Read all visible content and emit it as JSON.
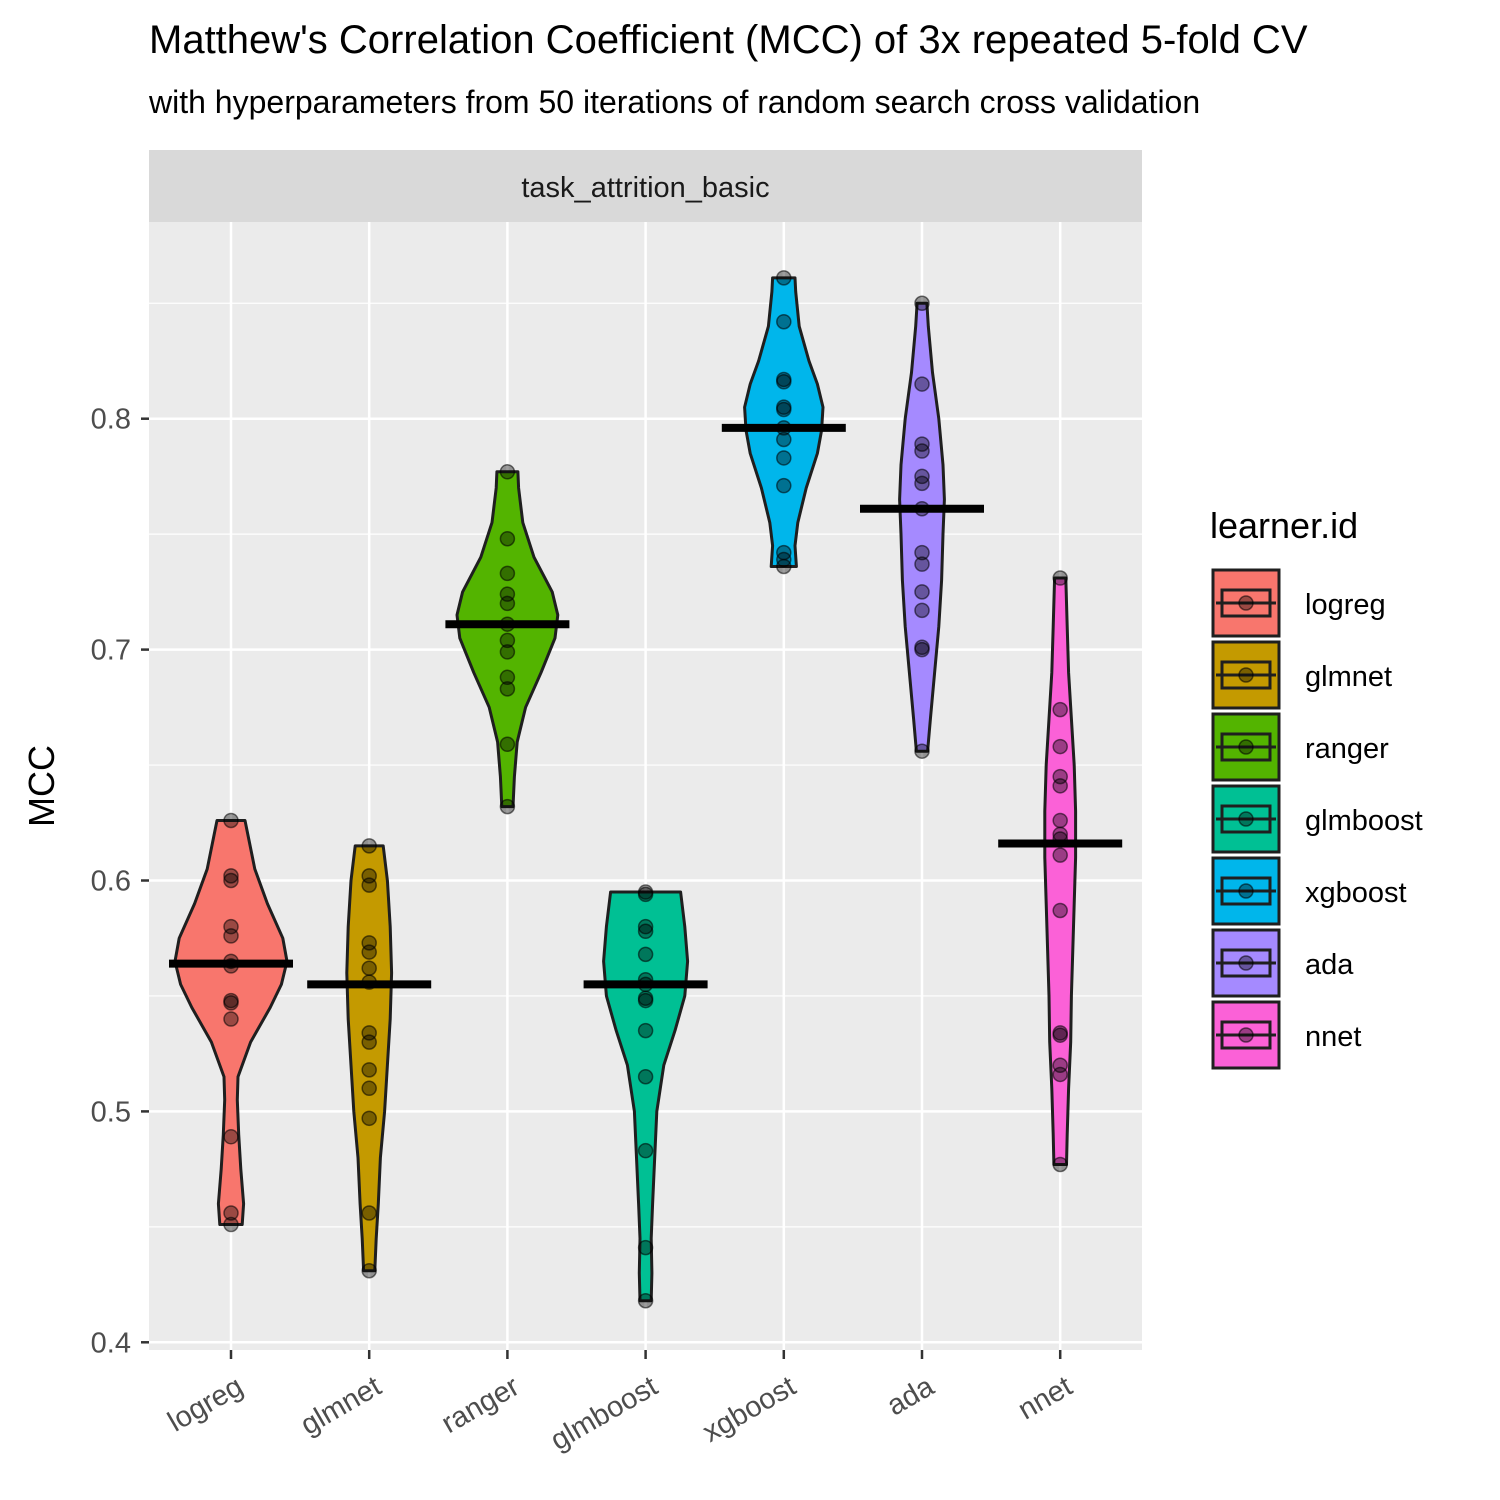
{
  "chart_data": {
    "type": "violin",
    "title": "Matthew's Correlation Coefficient (MCC) of 3x repeated 5-fold CV",
    "subtitle": "with hyperparameters from 50 iterations of random search cross validation",
    "facet": "task_attrition_basic",
    "ylabel": "MCC",
    "xlabel": "",
    "ylim": [
      0.4,
      0.885
    ],
    "yticks": [
      0.4,
      0.5,
      0.6,
      0.7,
      0.8
    ],
    "ytick_labels": [
      "0.4",
      "0.5",
      "0.6",
      "0.7",
      "0.8"
    ],
    "grid": true,
    "legend": {
      "title": "learner.id",
      "position": "right"
    },
    "categories": [
      "logreg",
      "glmnet",
      "ranger",
      "glmboost",
      "xgboost",
      "ada",
      "nnet"
    ],
    "series": [
      {
        "name": "logreg",
        "color": "#F8766D",
        "median": 0.564,
        "min": 0.451,
        "max": 0.626,
        "points": [
          0.626,
          0.602,
          0.6,
          0.58,
          0.576,
          0.565,
          0.563,
          0.548,
          0.547,
          0.54,
          0.489,
          0.456,
          0.451
        ],
        "density": [
          [
            0.451,
            0.08
          ],
          [
            0.46,
            0.09
          ],
          [
            0.475,
            0.07
          ],
          [
            0.49,
            0.055
          ],
          [
            0.505,
            0.045
          ],
          [
            0.515,
            0.05
          ],
          [
            0.53,
            0.14
          ],
          [
            0.545,
            0.28
          ],
          [
            0.555,
            0.36
          ],
          [
            0.565,
            0.4
          ],
          [
            0.575,
            0.37
          ],
          [
            0.59,
            0.26
          ],
          [
            0.605,
            0.17
          ],
          [
            0.62,
            0.12
          ],
          [
            0.626,
            0.1
          ]
        ]
      },
      {
        "name": "glmnet",
        "color": "#C49A00",
        "median": 0.555,
        "min": 0.431,
        "max": 0.615,
        "points": [
          0.615,
          0.602,
          0.598,
          0.573,
          0.569,
          0.562,
          0.556,
          0.534,
          0.53,
          0.518,
          0.51,
          0.497,
          0.456,
          0.431
        ],
        "density": [
          [
            0.431,
            0.04
          ],
          [
            0.445,
            0.05
          ],
          [
            0.46,
            0.065
          ],
          [
            0.48,
            0.08
          ],
          [
            0.5,
            0.11
          ],
          [
            0.52,
            0.13
          ],
          [
            0.54,
            0.15
          ],
          [
            0.56,
            0.16
          ],
          [
            0.58,
            0.15
          ],
          [
            0.6,
            0.13
          ],
          [
            0.615,
            0.1
          ]
        ]
      },
      {
        "name": "ranger",
        "color": "#53B400",
        "median": 0.711,
        "min": 0.632,
        "max": 0.777,
        "points": [
          0.777,
          0.748,
          0.733,
          0.724,
          0.72,
          0.711,
          0.704,
          0.699,
          0.688,
          0.683,
          0.659,
          0.632
        ],
        "density": [
          [
            0.632,
            0.04
          ],
          [
            0.645,
            0.05
          ],
          [
            0.66,
            0.07
          ],
          [
            0.675,
            0.13
          ],
          [
            0.69,
            0.24
          ],
          [
            0.705,
            0.34
          ],
          [
            0.715,
            0.36
          ],
          [
            0.725,
            0.32
          ],
          [
            0.74,
            0.19
          ],
          [
            0.755,
            0.11
          ],
          [
            0.77,
            0.08
          ],
          [
            0.777,
            0.075
          ]
        ]
      },
      {
        "name": "glmboost",
        "color": "#00C094",
        "median": 0.555,
        "min": 0.418,
        "max": 0.595,
        "points": [
          0.595,
          0.594,
          0.58,
          0.578,
          0.568,
          0.557,
          0.555,
          0.549,
          0.548,
          0.535,
          0.515,
          0.483,
          0.441,
          0.418
        ],
        "density": [
          [
            0.418,
            0.04
          ],
          [
            0.43,
            0.045
          ],
          [
            0.445,
            0.04
          ],
          [
            0.46,
            0.05
          ],
          [
            0.48,
            0.065
          ],
          [
            0.5,
            0.08
          ],
          [
            0.52,
            0.13
          ],
          [
            0.535,
            0.21
          ],
          [
            0.55,
            0.28
          ],
          [
            0.565,
            0.3
          ],
          [
            0.58,
            0.28
          ],
          [
            0.595,
            0.25
          ]
        ]
      },
      {
        "name": "xgboost",
        "color": "#00B6EB",
        "median": 0.796,
        "min": 0.736,
        "max": 0.861,
        "points": [
          0.861,
          0.842,
          0.817,
          0.816,
          0.805,
          0.804,
          0.796,
          0.791,
          0.783,
          0.771,
          0.742,
          0.739,
          0.736
        ],
        "density": [
          [
            0.736,
            0.09
          ],
          [
            0.745,
            0.08
          ],
          [
            0.755,
            0.1
          ],
          [
            0.77,
            0.16
          ],
          [
            0.785,
            0.24
          ],
          [
            0.795,
            0.27
          ],
          [
            0.805,
            0.28
          ],
          [
            0.815,
            0.24
          ],
          [
            0.825,
            0.18
          ],
          [
            0.84,
            0.11
          ],
          [
            0.855,
            0.085
          ],
          [
            0.861,
            0.08
          ]
        ]
      },
      {
        "name": "ada",
        "color": "#A58AFF",
        "median": 0.761,
        "min": 0.656,
        "max": 0.85,
        "points": [
          0.85,
          0.815,
          0.789,
          0.786,
          0.775,
          0.772,
          0.761,
          0.742,
          0.737,
          0.725,
          0.717,
          0.701,
          0.7,
          0.656
        ],
        "density": [
          [
            0.656,
            0.04
          ],
          [
            0.67,
            0.06
          ],
          [
            0.69,
            0.09
          ],
          [
            0.71,
            0.12
          ],
          [
            0.73,
            0.14
          ],
          [
            0.75,
            0.15
          ],
          [
            0.765,
            0.16
          ],
          [
            0.78,
            0.15
          ],
          [
            0.8,
            0.12
          ],
          [
            0.82,
            0.075
          ],
          [
            0.84,
            0.045
          ],
          [
            0.85,
            0.035
          ]
        ]
      },
      {
        "name": "nnet",
        "color": "#FB61D7",
        "median": 0.616,
        "min": 0.477,
        "max": 0.731,
        "points": [
          0.731,
          0.674,
          0.658,
          0.645,
          0.641,
          0.626,
          0.62,
          0.618,
          0.611,
          0.587,
          0.534,
          0.533,
          0.52,
          0.516,
          0.477
        ],
        "density": [
          [
            0.477,
            0.045
          ],
          [
            0.49,
            0.05
          ],
          [
            0.51,
            0.06
          ],
          [
            0.53,
            0.075
          ],
          [
            0.55,
            0.08
          ],
          [
            0.57,
            0.09
          ],
          [
            0.59,
            0.1
          ],
          [
            0.61,
            0.11
          ],
          [
            0.63,
            0.11
          ],
          [
            0.65,
            0.1
          ],
          [
            0.67,
            0.08
          ],
          [
            0.69,
            0.06
          ],
          [
            0.71,
            0.05
          ],
          [
            0.731,
            0.04
          ]
        ]
      }
    ]
  }
}
